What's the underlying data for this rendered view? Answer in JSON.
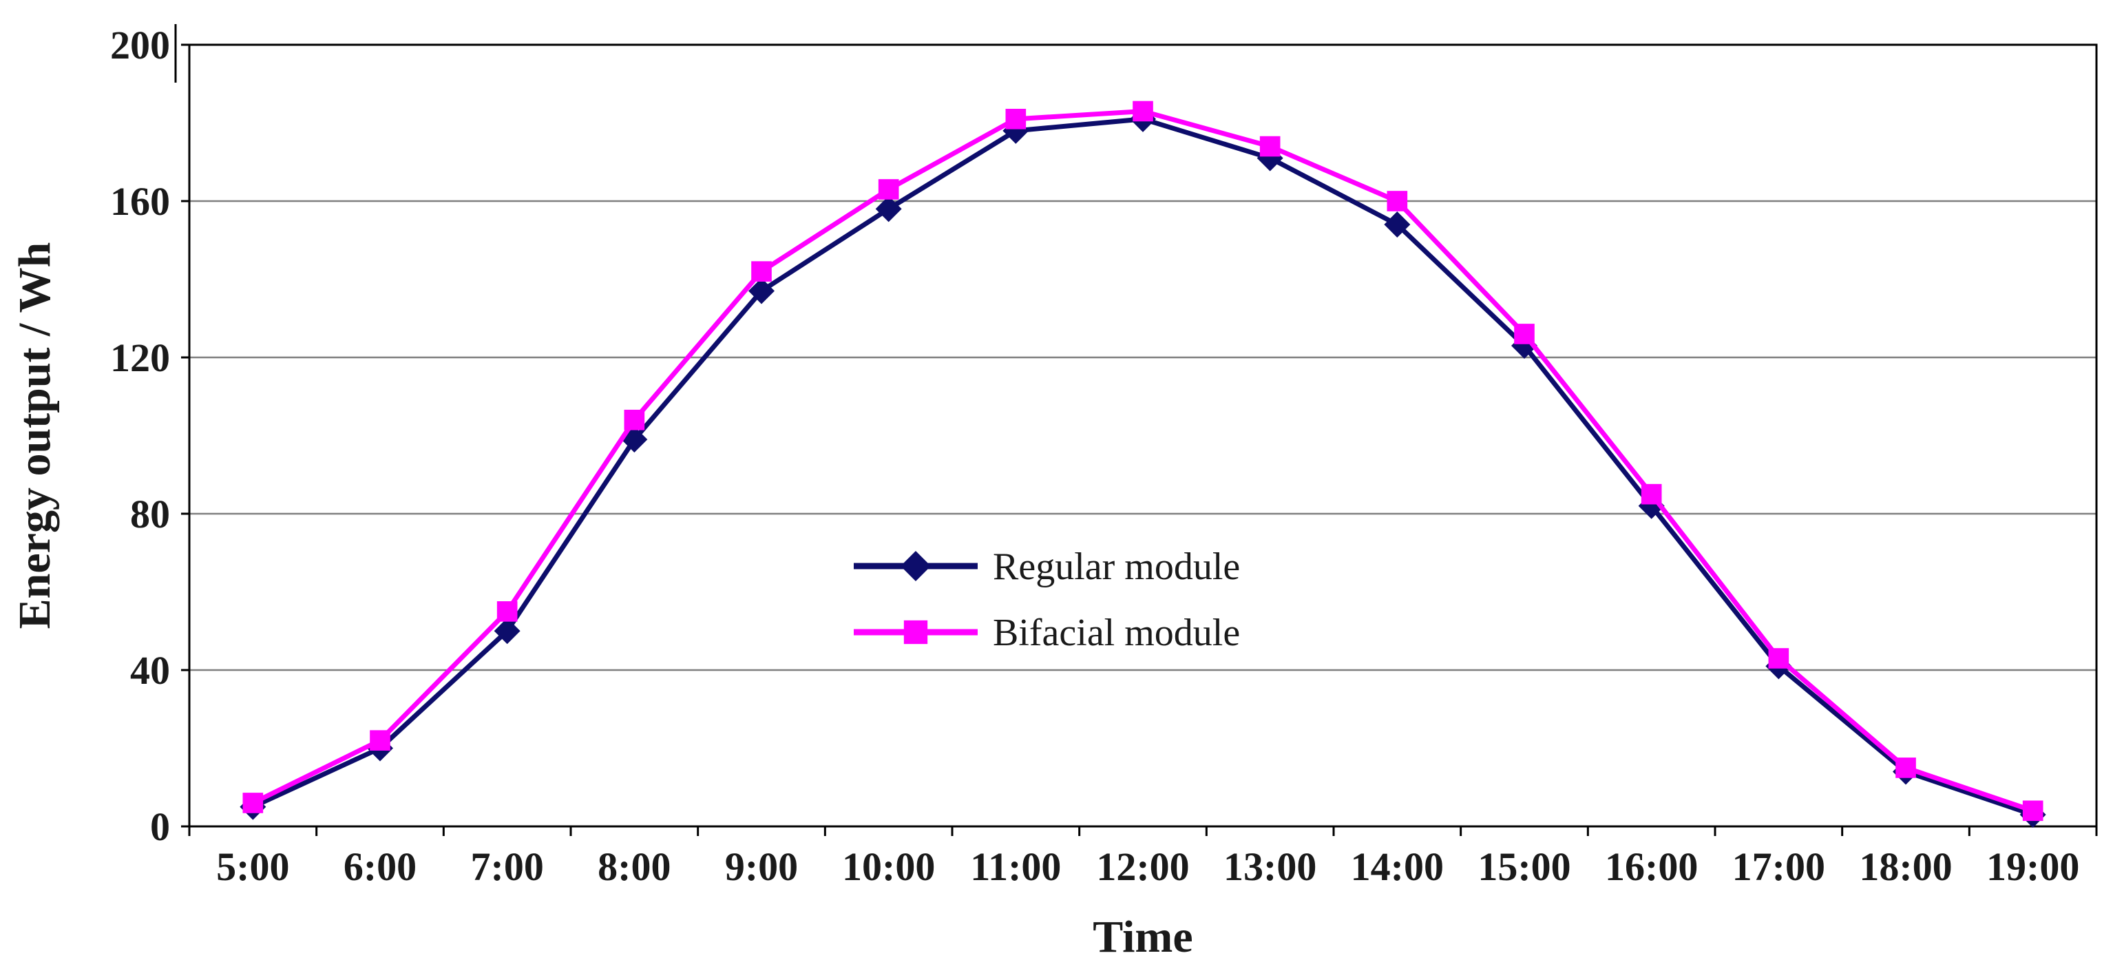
{
  "chart_data": {
    "type": "line",
    "title": "",
    "xlabel": "Time",
    "ylabel": "Energy output / Wh",
    "categories": [
      "5:00",
      "6:00",
      "7:00",
      "8:00",
      "9:00",
      "10:00",
      "11:00",
      "12:00",
      "13:00",
      "14:00",
      "15:00",
      "16:00",
      "17:00",
      "18:00",
      "19:00"
    ],
    "ylim": [
      0,
      200
    ],
    "yticks": [
      "0",
      "40",
      "80",
      "120",
      "160",
      "200"
    ],
    "grid": true,
    "legend_position": "center",
    "series": [
      {
        "name": "Regular module",
        "color": "#0d0d6b",
        "marker": "diamond",
        "values": [
          5,
          20,
          50,
          99,
          137,
          158,
          178,
          181,
          171,
          154,
          123,
          82,
          41,
          14,
          3
        ]
      },
      {
        "name": "Bifacial module",
        "color": "#ff00ff",
        "marker": "square",
        "values": [
          6,
          22,
          55,
          104,
          142,
          163,
          181,
          183,
          174,
          160,
          126,
          85,
          43,
          15,
          4
        ]
      }
    ]
  }
}
